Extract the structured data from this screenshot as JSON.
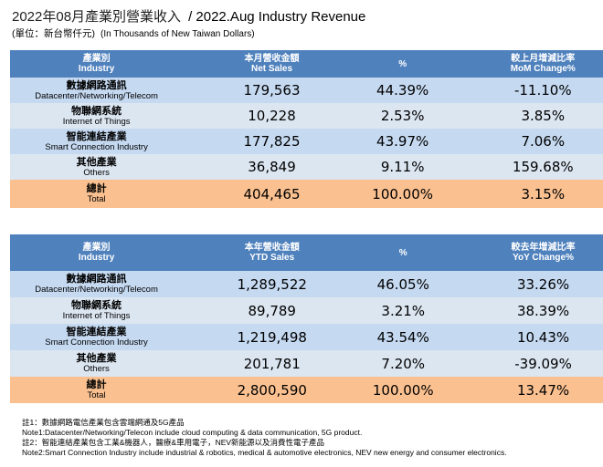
{
  "title": {
    "zh": "2022年08月產業別營業收入",
    "en": "/ 2022.Aug Industry Revenue"
  },
  "unit": {
    "zh": "(單位：新台幣仟元)",
    "en": "(In Thousands of New Taiwan Dollars)"
  },
  "colors": {
    "header": "#4f81bd",
    "row_a": "#c5d9f1",
    "row_b": "#dce6f1",
    "total": "#fac090"
  },
  "monthly": {
    "headers": [
      {
        "zh": "產業別",
        "en": "Industry"
      },
      {
        "zh": "本月營收金額",
        "en": "Net Sales"
      },
      {
        "zh": "",
        "en": "%"
      },
      {
        "zh": "較上月增減比率",
        "en": "MoM Change%"
      }
    ],
    "rows": [
      {
        "zh": "數據網路通訊",
        "en": "Datacenter/Networking/Telecom",
        "sales": "179,563",
        "pct": "44.39%",
        "chg": "-11.10%"
      },
      {
        "zh": "物聯網系統",
        "en": "Internet of Things",
        "sales": "10,228",
        "pct": "2.53%",
        "chg": "3.85%"
      },
      {
        "zh": "智能連結產業",
        "en": "Smart Connection Industry",
        "sales": "177,825",
        "pct": "43.97%",
        "chg": "7.06%"
      },
      {
        "zh": "其他產業",
        "en": "Others",
        "sales": "36,849",
        "pct": "9.11%",
        "chg": "159.68%"
      },
      {
        "zh": "總計",
        "en": "Total",
        "sales": "404,465",
        "pct": "100.00%",
        "chg": "3.15%"
      }
    ]
  },
  "ytd": {
    "headers": [
      {
        "zh": "產業別",
        "en": "Industry"
      },
      {
        "zh": "本年營收金額",
        "en": "YTD Sales"
      },
      {
        "zh": "",
        "en": "%"
      },
      {
        "zh": "較去年增減比率",
        "en": "YoY Change%"
      }
    ],
    "rows": [
      {
        "zh": "數據網路通訊",
        "en": "Datacenter/Networking/Telecom",
        "sales": "1,289,522",
        "pct": "46.05%",
        "chg": "33.26%"
      },
      {
        "zh": "物聯網系統",
        "en": "Internet of Things",
        "sales": "89,789",
        "pct": "3.21%",
        "chg": "38.39%"
      },
      {
        "zh": "智能連結產業",
        "en": "Smart Connection Industry",
        "sales": "1,219,498",
        "pct": "43.54%",
        "chg": "10.43%"
      },
      {
        "zh": "其他產業",
        "en": "Others",
        "sales": "201,781",
        "pct": "7.20%",
        "chg": "-39.09%"
      },
      {
        "zh": "總計",
        "en": "Total",
        "sales": "2,800,590",
        "pct": "100.00%",
        "chg": "13.47%"
      }
    ]
  },
  "notes": [
    "註1：數據網路電信產業包含雲端網通及5G產品",
    "Note1:Datacenter/Networking/Telecon include cloud computing & data communication, 5G product.",
    "註2：智能連結產業包含工業&機器人，醫療&車用電子，NEV新能源以及消費性電子產品",
    "Note2:Smart Connection Industry include industrial & robotics, medical & automotive electronics, NEV new energy and consumer electronics."
  ]
}
